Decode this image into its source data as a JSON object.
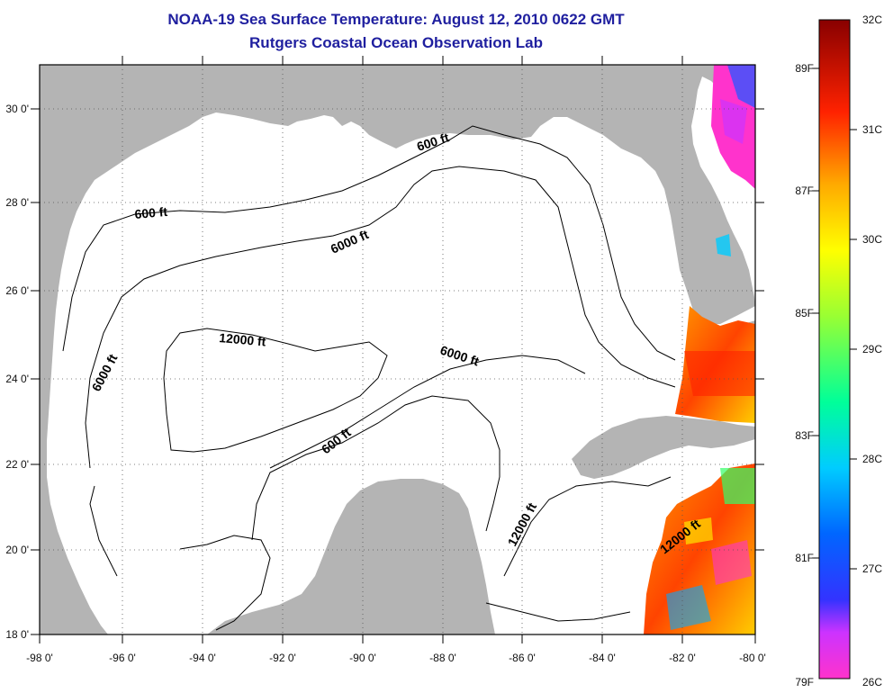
{
  "title": {
    "line1": "NOAA-19 Sea Surface Temperature:  August 12, 2010 0622 GMT",
    "line2": "Rutgers Coastal Ocean Observation Lab"
  },
  "axes": {
    "lat_labels": [
      "30 0'",
      "28 0'",
      "26 0'",
      "24 0'",
      "22 0'",
      "20 0'",
      "18 0'"
    ],
    "lon_labels": [
      "-98 0'",
      "-96 0'",
      "-94 0'",
      "-92 0'",
      "-90 0'",
      "-88 0'",
      "-86 0'",
      "-84 0'",
      "-82 0'",
      "-80 0'"
    ]
  },
  "contour_labels": [
    "600 ft",
    "600 ft",
    "6000 ft",
    "6000 ft",
    "6000 ft",
    "12000 ft",
    "600 ft",
    "12000 ft",
    "12000 ft"
  ],
  "colorbar": {
    "celsius": [
      "32C",
      "31C",
      "30C",
      "29C",
      "28C",
      "27C",
      "26C"
    ],
    "fahrenheit": [
      "89F",
      "87F",
      "85F",
      "83F",
      "81F",
      "79F"
    ]
  },
  "colors": {
    "land": "#b4b4b4",
    "water": "#ffffff",
    "title": "#1f1f9f"
  }
}
